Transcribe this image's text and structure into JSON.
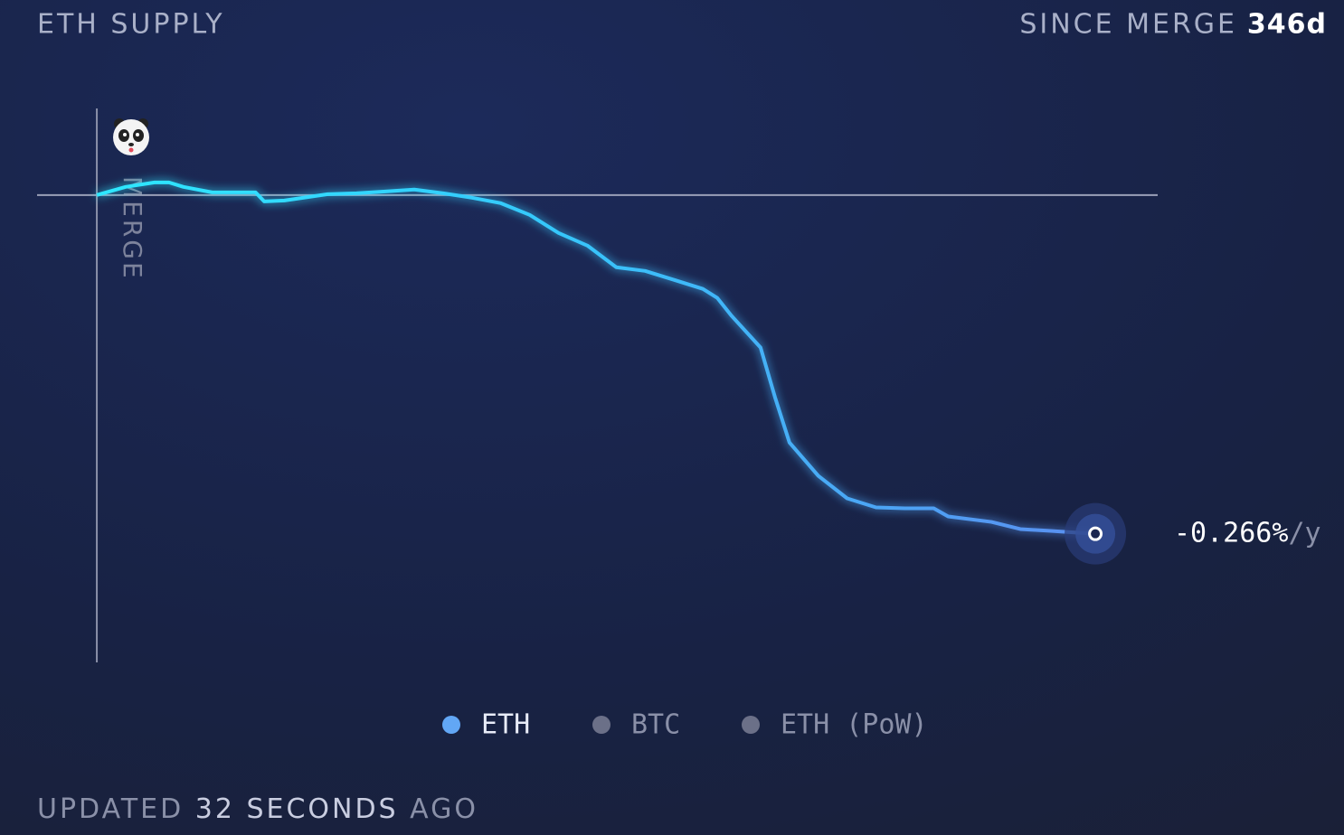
{
  "chart_data": {
    "type": "line",
    "title": "ETH SUPPLY",
    "period_label": "SINCE MERGE",
    "period_value": "346d",
    "x": [
      0,
      10,
      20,
      25,
      30,
      40,
      50,
      55,
      58,
      65,
      80,
      90,
      100,
      110,
      120,
      130,
      140,
      150,
      160,
      170,
      180,
      190,
      200,
      210,
      215,
      220,
      230,
      235,
      240,
      250,
      260,
      270,
      280,
      290,
      295,
      310,
      320,
      330,
      340,
      346
    ],
    "series": [
      {
        "name": "ETH",
        "color": "#62a7f5",
        "values": [
          0,
          0.0064,
          0.0099,
          0.0099,
          0.0064,
          0.0021,
          0.0021,
          0.0021,
          -0.005,
          -0.0043,
          0.0007,
          0.0014,
          0.0028,
          0.0043,
          0.0014,
          -0.0021,
          -0.0064,
          -0.0156,
          -0.0298,
          -0.0397,
          -0.0567,
          -0.0596,
          -0.0666,
          -0.0737,
          -0.0808,
          -0.095,
          -0.1198,
          -0.1588,
          -0.1943,
          -0.2205,
          -0.2382,
          -0.2453,
          -0.246,
          -0.246,
          -0.2524,
          -0.2567,
          -0.2623,
          -0.2637,
          -0.2652,
          -0.266
        ]
      }
    ],
    "inactive_series": [
      {
        "name": "BTC",
        "color": "#6b7088"
      },
      {
        "name": "ETH (PoW)",
        "color": "#6b7088"
      }
    ],
    "end_label": {
      "value": "-0.266%",
      "unit": "/y"
    },
    "merge_label": "MERGE",
    "baseline": 0,
    "xlim": [
      -20.7,
      367.6
    ],
    "ylim": [
      -0.367,
      0.068
    ],
    "footer": {
      "prefix": "UPDATED",
      "time": "32 SECONDS",
      "suffix": "AGO"
    }
  }
}
